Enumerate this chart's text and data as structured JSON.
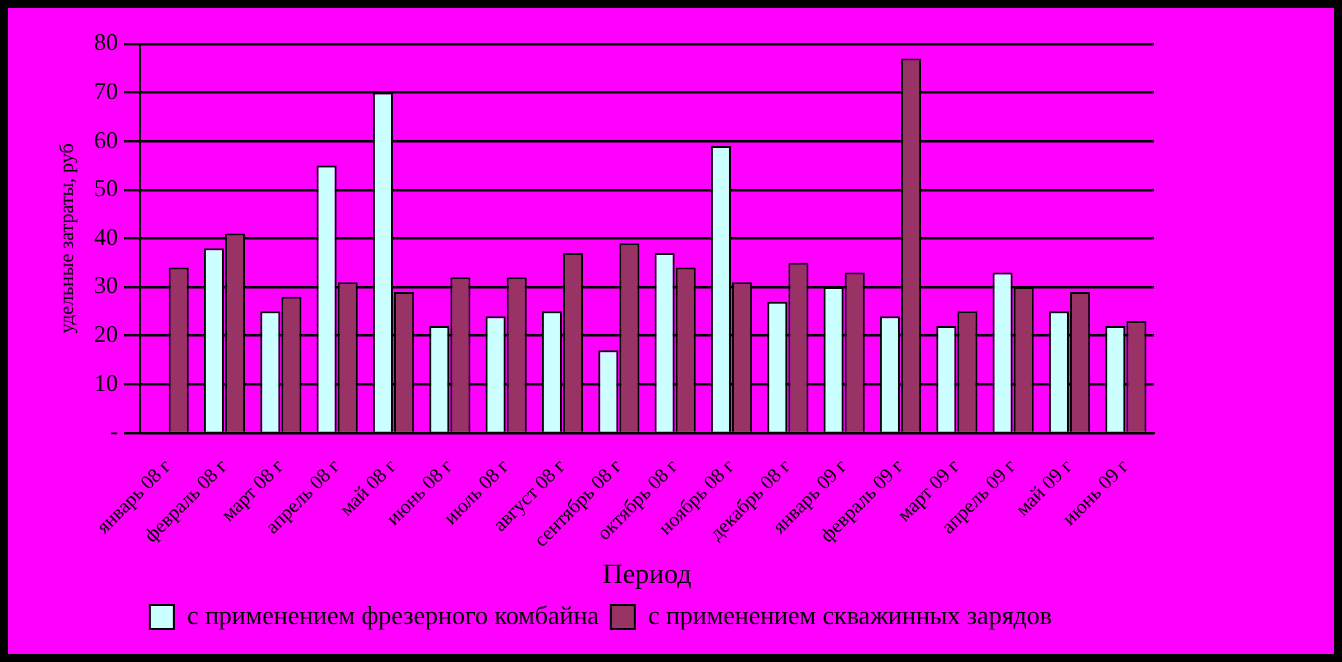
{
  "chart_data": {
    "type": "bar",
    "xlabel": "Период",
    "ylabel": "удельные затраты, руб",
    "categories": [
      "январь 08 г",
      "февраль 08 г",
      "март 08 г",
      "апрель 08 г",
      "май 08 г",
      "июнь 08 г",
      "июль 08 г",
      "август 08 г",
      "сентябрь 08 г",
      "октябрь 08 г",
      "ноябрь 08 г",
      "декабрь 08 г",
      "январь 09 г",
      "февраль 09 г",
      "март 09 г",
      "апрель 09 г",
      "май 09 г",
      "июнь 09 г"
    ],
    "series": [
      {
        "name": "с применением фрезерного комбайна",
        "color": "#ccffff",
        "values": [
          0,
          38,
          25,
          55,
          70,
          22,
          24,
          25,
          17,
          37,
          59,
          27,
          30,
          24,
          22,
          33,
          25,
          22
        ]
      },
      {
        "name": "с применением скважинных зарядов",
        "color": "#993366",
        "values": [
          34,
          41,
          28,
          31,
          29,
          32,
          32,
          37,
          39,
          34,
          31,
          35,
          33,
          77,
          25,
          30,
          29,
          23
        ]
      }
    ],
    "ylim": [
      0,
      80
    ],
    "yticks": [
      {
        "value": 0,
        "label": "-"
      },
      10,
      20,
      30,
      40,
      50,
      60,
      70,
      80
    ],
    "grid": "y",
    "legend": "bottom"
  }
}
